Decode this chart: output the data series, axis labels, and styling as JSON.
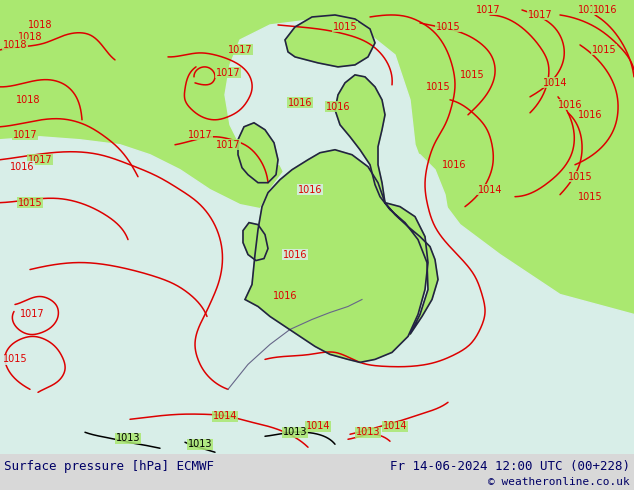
{
  "title_left": "Surface pressure [hPa] ECMWF",
  "title_right": "Fr 14-06-2024 12:00 UTC (00+228)",
  "title_right2": "© weatheronline.co.uk",
  "land_color": "#aae870",
  "sea_color": "#d8eee8",
  "border_color": "#222244",
  "country_border_color": "#666688",
  "isobar_red": "#dd0000",
  "isobar_black": "#000000",
  "isobar_blue": "#0000cc",
  "text_color": "#000066",
  "bottom_bar_color": "#d8d8d8",
  "label_bg": "#aae870",
  "figsize": [
    6.34,
    4.9
  ],
  "dpi": 100,
  "font_size_label": 9,
  "font_size_isobar": 7
}
